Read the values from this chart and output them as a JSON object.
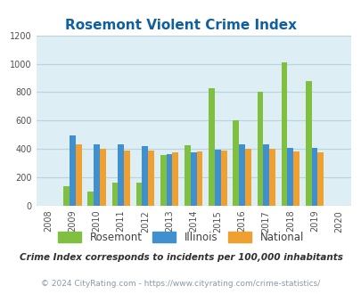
{
  "title": "Rosemont Violent Crime Index",
  "years": [
    2008,
    2009,
    2010,
    2011,
    2012,
    2013,
    2014,
    2015,
    2016,
    2017,
    2018,
    2019,
    2020
  ],
  "rosemont": [
    0,
    135,
    100,
    165,
    165,
    355,
    425,
    825,
    600,
    800,
    1010,
    875,
    0
  ],
  "illinois": [
    0,
    495,
    430,
    430,
    420,
    365,
    375,
    395,
    430,
    435,
    405,
    410,
    0
  ],
  "national": [
    0,
    430,
    400,
    390,
    390,
    375,
    385,
    390,
    400,
    400,
    380,
    375,
    0
  ],
  "rosemont_color": "#80c040",
  "illinois_color": "#4090d0",
  "national_color": "#f0a030",
  "bg_color": "#ddeef4",
  "title_color": "#1060a0",
  "ylim": [
    0,
    1200
  ],
  "yticks": [
    0,
    200,
    400,
    600,
    800,
    1000,
    1200
  ],
  "footnote1": "Crime Index corresponds to incidents per 100,000 inhabitants",
  "footnote2": "© 2024 CityRating.com - https://www.cityrating.com/crime-statistics/",
  "footnote1_color": "#303030",
  "footnote2_color": "#8899aa",
  "bar_width": 0.25,
  "grid_color": "#b8d4dc"
}
